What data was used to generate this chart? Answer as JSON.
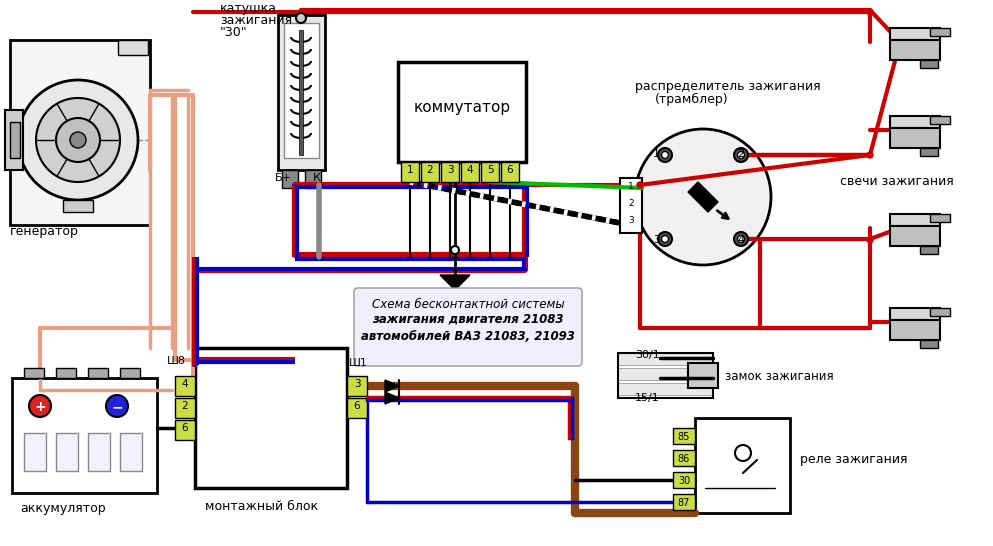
{
  "bg_color": "#ffffff",
  "fig_width": 9.93,
  "fig_height": 5.46,
  "dpi": 100,
  "labels": {
    "generator": "генератор",
    "coil_line1": "катушка",
    "coil_line2": "зажигания",
    "coil_30": "\"30\"",
    "kommutator": "коммутатор",
    "distributor_line1": "распределитель зажигания",
    "distributor_line2": "(трамблер)",
    "spark_plugs": "свечи зажигания",
    "accumulator": "аккумулятор",
    "montazh_blok": "монтажный блок",
    "zamok": "замок зажигания",
    "rele": "реле зажигания",
    "Bplus": "Б+",
    "K": "К",
    "Sh8": "Ш8",
    "Sh1": "Ш1",
    "schema_line1": "Схема бесконтактной системы",
    "schema_line2": "зажигания двигателя 21083",
    "schema_line3": "автомобилей ВАЗ 21083, 21093",
    "conn_30_1": "30/1",
    "conn_15_1": "15/1"
  },
  "colors": {
    "red": "#cc0000",
    "blue": "#0000cc",
    "pink": "#e8a080",
    "black": "#000000",
    "white": "#ffffff",
    "ygr": "#ccdd44",
    "green": "#00bb00",
    "gray": "#888888",
    "lgray": "#cccccc",
    "brown": "#8B4513",
    "checker1": "#ffffff",
    "checker2": "#000000"
  }
}
